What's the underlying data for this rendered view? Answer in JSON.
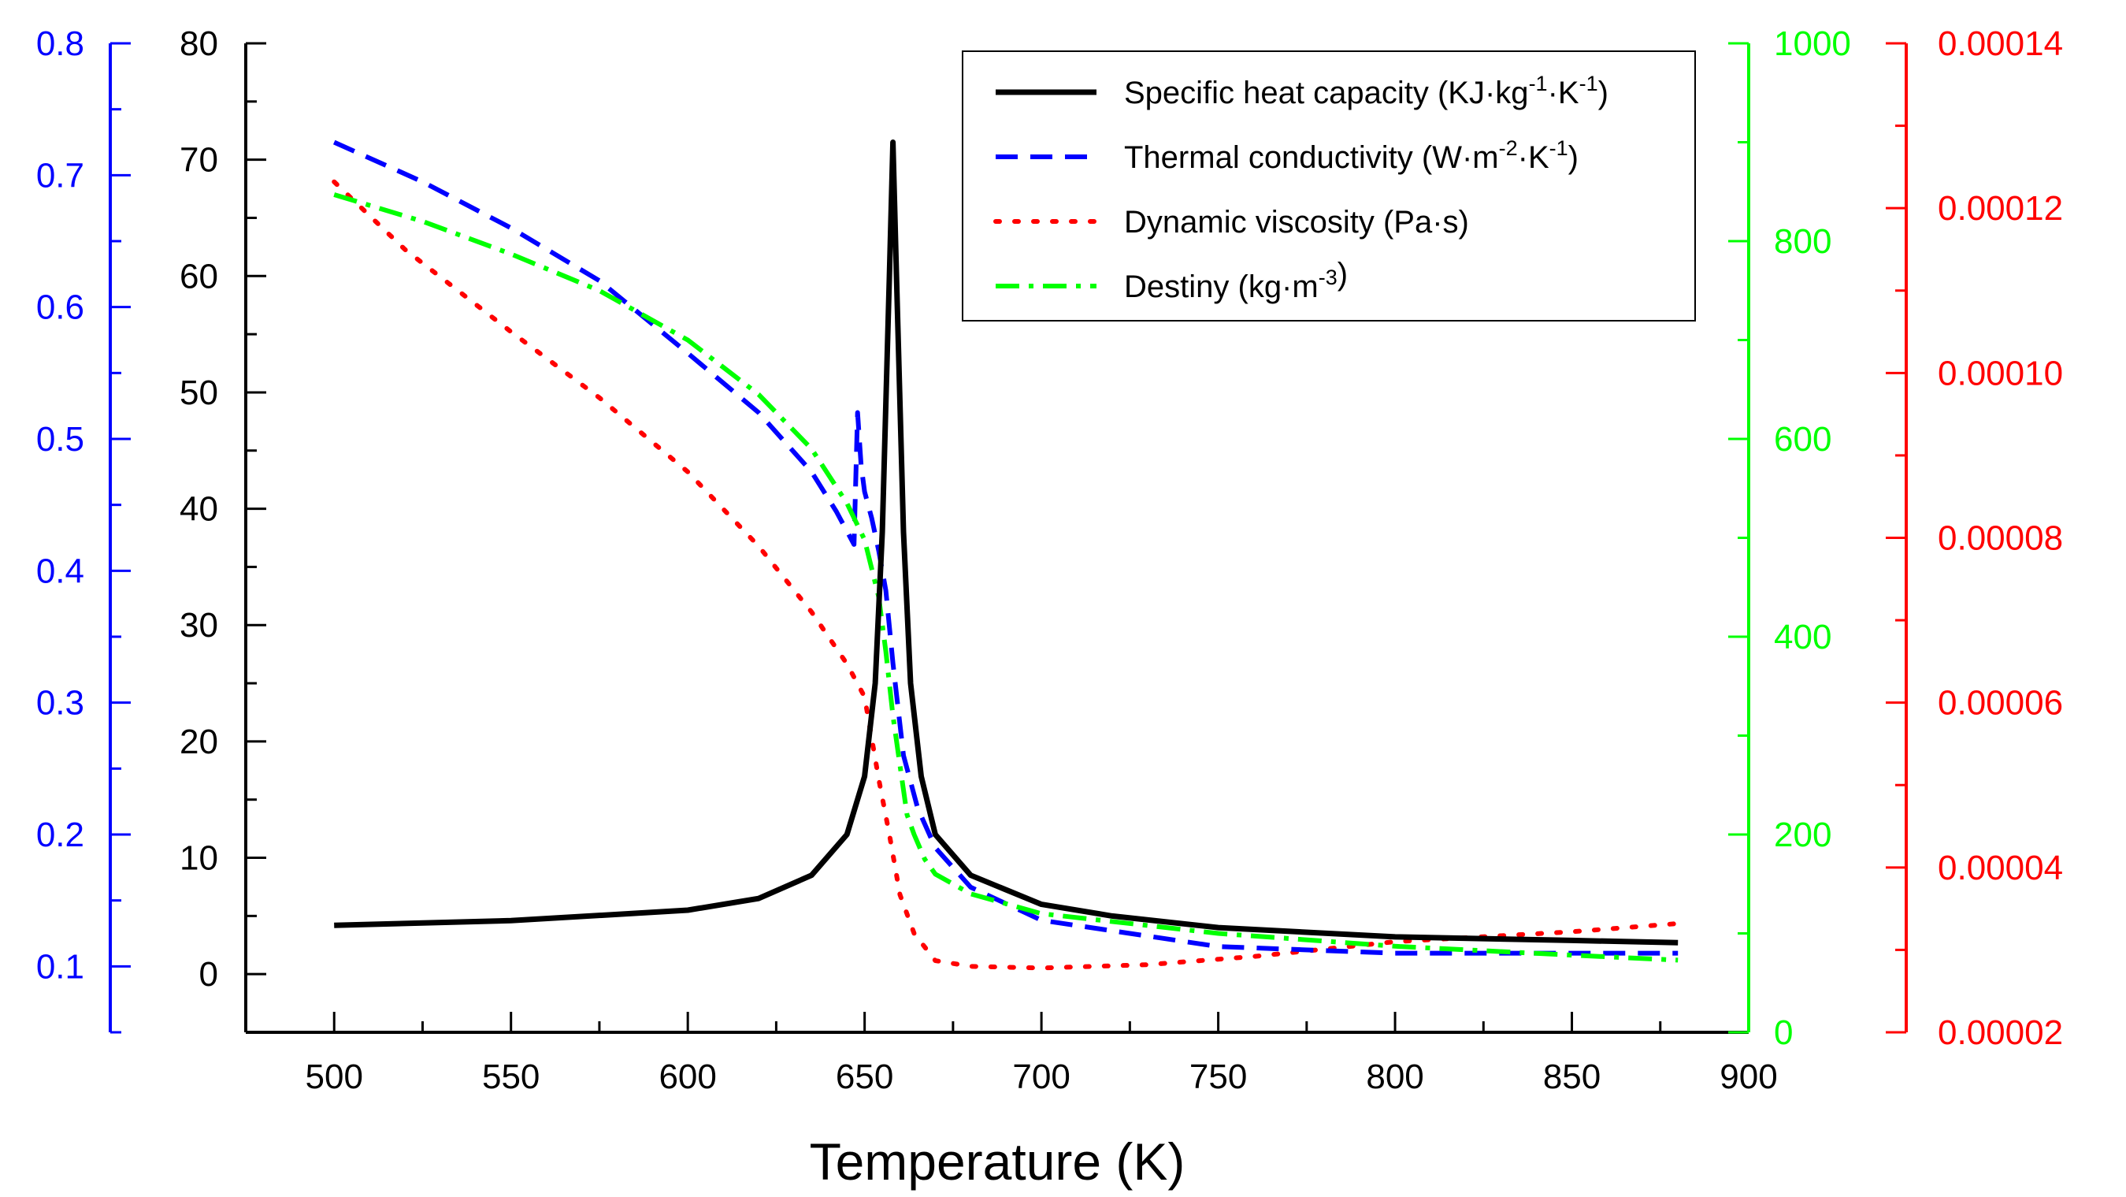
{
  "chart_data": {
    "type": "line",
    "title": "",
    "xlabel": "Temperature (K)",
    "xlim": [
      475,
      900
    ],
    "xticks": [
      "500",
      "550",
      "600",
      "650",
      "700",
      "750",
      "800",
      "850",
      "900"
    ],
    "axes": [
      {
        "id": "cp",
        "position": "left-inner",
        "color": "#000000",
        "ylim": [
          -5,
          80
        ],
        "ticks": [
          "0",
          "10",
          "20",
          "30",
          "40",
          "50",
          "60",
          "70",
          "80"
        ]
      },
      {
        "id": "k",
        "position": "left-outer",
        "color": "#0000ff",
        "ylim": [
          0.05,
          0.8
        ],
        "ticks": [
          "0.1",
          "0.2",
          "0.3",
          "0.4",
          "0.5",
          "0.6",
          "0.7",
          "0.8"
        ]
      },
      {
        "id": "rho",
        "position": "right-inner",
        "color": "#00ff00",
        "ylim": [
          0,
          1000
        ],
        "ticks": [
          "0",
          "200",
          "400",
          "600",
          "800",
          "1000"
        ]
      },
      {
        "id": "mu",
        "position": "right-outer",
        "color": "#ff0000",
        "ylim": [
          2e-05,
          0.00014
        ],
        "ticks": [
          "0.00002",
          "0.00004",
          "0.00006",
          "0.00008",
          "0.00010",
          "0.00012",
          "0.00014"
        ]
      }
    ],
    "legend": {
      "position": "top-right",
      "entries": [
        {
          "main": "Specific heat capacity (KJ·kg",
          "sup1": "-1",
          "mid": "·K",
          "sup2": "-1",
          "end": ")"
        },
        {
          "main": "Thermal conductivity (W·m",
          "sup1": "-2",
          "mid": "·K",
          "sup2": "-1",
          "end": ")"
        },
        {
          "main": "Dynamic viscosity (Pa·s)",
          "sup1": "",
          "mid": "",
          "sup2": "",
          "end": ""
        },
        {
          "main": "Destiny (kg·m",
          "sup1": "-3",
          "mid": "",
          "sup2": "",
          "end": ")"
        }
      ]
    },
    "series": [
      {
        "name": "Specific heat capacity",
        "axis": "cp",
        "color": "#000000",
        "style": "solid",
        "x": [
          500,
          550,
          600,
          620,
          635,
          645,
          650,
          653,
          655,
          657,
          658,
          659,
          661,
          663,
          666,
          670,
          680,
          700,
          720,
          750,
          800,
          850,
          880
        ],
        "y": [
          4.2,
          4.6,
          5.5,
          6.5,
          8.5,
          12,
          17,
          25,
          38,
          60,
          71.5,
          60,
          38,
          25,
          17,
          12,
          8.5,
          6,
          5,
          4,
          3.2,
          2.9,
          2.7
        ]
      },
      {
        "name": "Thermal conductivity",
        "axis": "k",
        "color": "#0000ff",
        "style": "dash",
        "x": [
          500,
          525,
          550,
          575,
          600,
          620,
          635,
          642,
          645,
          647,
          648,
          649,
          650,
          652,
          654,
          656,
          658,
          661,
          665,
          670,
          680,
          700,
          750,
          800,
          850,
          880
        ],
        "y": [
          0.725,
          0.695,
          0.66,
          0.62,
          0.565,
          0.52,
          0.475,
          0.445,
          0.43,
          0.42,
          0.52,
          0.48,
          0.46,
          0.44,
          0.415,
          0.385,
          0.33,
          0.26,
          0.22,
          0.19,
          0.16,
          0.135,
          0.115,
          0.11,
          0.11,
          0.11
        ]
      },
      {
        "name": "Dynamic viscosity",
        "axis": "mu",
        "color": "#ff0000",
        "style": "dot",
        "x": [
          500,
          520,
          550,
          575,
          600,
          620,
          635,
          645,
          650,
          654,
          657,
          660,
          664,
          670,
          680,
          700,
          730,
          760,
          800,
          850,
          880
        ],
        "y": [
          0.0001232,
          0.000115,
          0.000105,
          9.7e-05,
          8.8e-05,
          7.9e-05,
          7.1e-05,
          6.47e-05,
          6.07e-05,
          5.07e-05,
          4.4e-05,
          3.67e-05,
          3.2e-05,
          2.87e-05,
          2.8e-05,
          2.78e-05,
          2.82e-05,
          2.92e-05,
          3.1e-05,
          3.22e-05,
          3.32e-05
        ]
      },
      {
        "name": "Destiny",
        "axis": "rho",
        "color": "#00ff00",
        "style": "dashdot",
        "x": [
          500,
          525,
          550,
          575,
          600,
          620,
          635,
          645,
          650,
          654,
          656,
          658,
          660,
          662,
          664,
          667,
          670,
          680,
          700,
          750,
          800,
          850,
          880
        ],
        "y": [
          847,
          820,
          787,
          750,
          700,
          645,
          590,
          535,
          498,
          440,
          385,
          320,
          270,
          220,
          200,
          175,
          160,
          140,
          120,
          100,
          87,
          78,
          73
        ]
      }
    ]
  }
}
